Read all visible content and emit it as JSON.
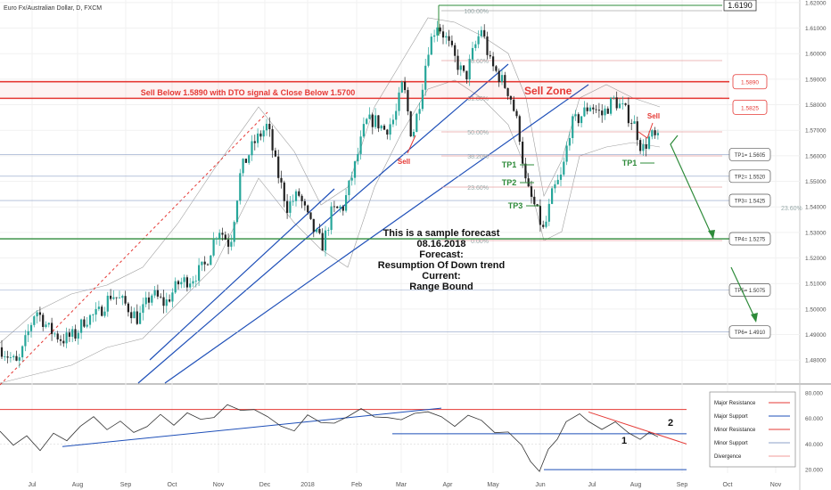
{
  "chart_data": {
    "type": "candlestick",
    "title": "Euro Fx/Australian Dollar, D, FXCM",
    "price_ylim": [
      1.471,
      1.621
    ],
    "price_ticks": [
      "1.62000",
      "1.61000",
      "1.60000",
      "1.59000",
      "1.58000",
      "1.57000",
      "1.56000",
      "1.55000",
      "1.54000",
      "1.53000",
      "1.52000",
      "1.51000",
      "1.50000",
      "1.49000",
      "1.48000"
    ],
    "price_label": "1.6190",
    "x_labels": [
      "Jul",
      "Aug",
      "Sep",
      "Oct",
      "Nov",
      "Dec",
      "2018",
      "Feb",
      "Mar",
      "Apr",
      "May",
      "Jun",
      "Jul",
      "Aug",
      "Sep",
      "Oct",
      "Nov"
    ],
    "fib_labels": [
      "100.00%",
      "78.60%",
      "61.80%",
      "50.00%",
      "38.20%",
      "23.60%",
      "0.00%"
    ],
    "fib_right_label": "23.60%",
    "sell_text": "Sell Below 1.5890 with DTO signal & Close Below 1.5700",
    "zone_label": "Sell Zone",
    "zone_top_label": "1.5890",
    "zone_bottom_label": "1.5825",
    "sell_markers": [
      "Sell",
      "Sell"
    ],
    "tp_markers": [
      "TP1",
      "TP2",
      "TP3",
      "TP1"
    ],
    "tp_boxes": [
      "TP1= 1.5605",
      "TP2= 1.5520",
      "TP3= 1.5425",
      "TP4= 1.5275",
      "TP5= 1.5075",
      "TP6= 1.4910"
    ],
    "forecast_lines": [
      "This is a sample forecast",
      "08.16.2018",
      "Forecast:",
      "Resumption Of Down trend",
      "Current:",
      "Range Bound"
    ],
    "indicator_ylim": [
      18,
      82
    ],
    "indicator_ticks": [
      "80.000",
      "60.000",
      "40.000",
      "20.000"
    ],
    "indicator_markers": [
      "1",
      "2"
    ],
    "legend": [
      "Major Resistance",
      "Major Support",
      "Minor Resistance",
      "Minor Support",
      "Divergence"
    ],
    "colors": {
      "resistance": "#e53935",
      "support": "#1e4fb8",
      "bullish": "#26a69a",
      "bearish": "#222222",
      "projection": "#2e8b3a",
      "fib": "#e8a0a0",
      "band": "#9e9e9e"
    }
  }
}
